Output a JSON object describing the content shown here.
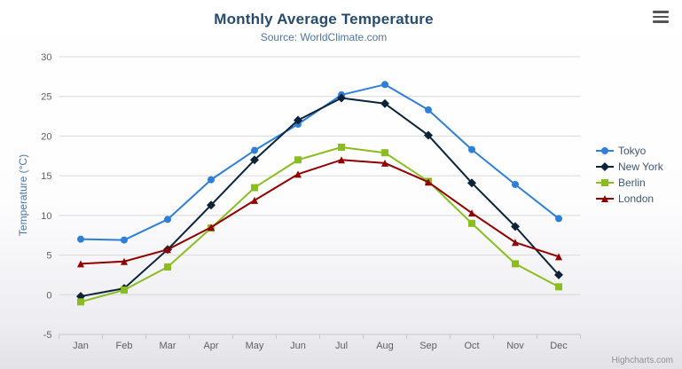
{
  "chart_data": {
    "type": "line",
    "title": "Monthly Average Temperature",
    "subtitle": "Source: WorldClimate.com",
    "categories": [
      "Jan",
      "Feb",
      "Mar",
      "Apr",
      "May",
      "Jun",
      "Jul",
      "Aug",
      "Sep",
      "Oct",
      "Nov",
      "Dec"
    ],
    "xlabel": "",
    "ylabel": "Temperature (°C)",
    "ylim": [
      -5,
      30
    ],
    "ytick_interval": 5,
    "grid": "horizontal",
    "legend_position": "right-middle",
    "colors": {
      "grid": "#d8d8d8",
      "axis_line": "#c0c8d2",
      "axis_label": "#606060",
      "title": "#274b6d",
      "subtitle": "#4d759e",
      "legend_text": "#3e576f"
    },
    "series": [
      {
        "name": "Tokyo",
        "color": "#2f7ed8",
        "marker": "circle",
        "values": [
          7.0,
          6.9,
          9.5,
          14.5,
          18.2,
          21.5,
          25.2,
          26.5,
          23.3,
          18.3,
          13.9,
          9.6
        ]
      },
      {
        "name": "New York",
        "color": "#0d233a",
        "marker": "diamond",
        "values": [
          -0.2,
          0.8,
          5.7,
          11.3,
          17.0,
          22.0,
          24.8,
          24.1,
          20.1,
          14.1,
          8.6,
          2.5
        ]
      },
      {
        "name": "Berlin",
        "color": "#8bbc21",
        "marker": "square",
        "values": [
          -0.9,
          0.6,
          3.5,
          8.4,
          13.5,
          17.0,
          18.6,
          17.9,
          14.3,
          9.0,
          3.9,
          1.0
        ]
      },
      {
        "name": "London",
        "color": "#910000",
        "marker": "triangle",
        "values": [
          3.9,
          4.2,
          5.7,
          8.5,
          11.9,
          15.2,
          17.0,
          16.6,
          14.2,
          10.3,
          6.6,
          4.8
        ]
      }
    ]
  },
  "credits": {
    "text": "Highcharts.com"
  }
}
